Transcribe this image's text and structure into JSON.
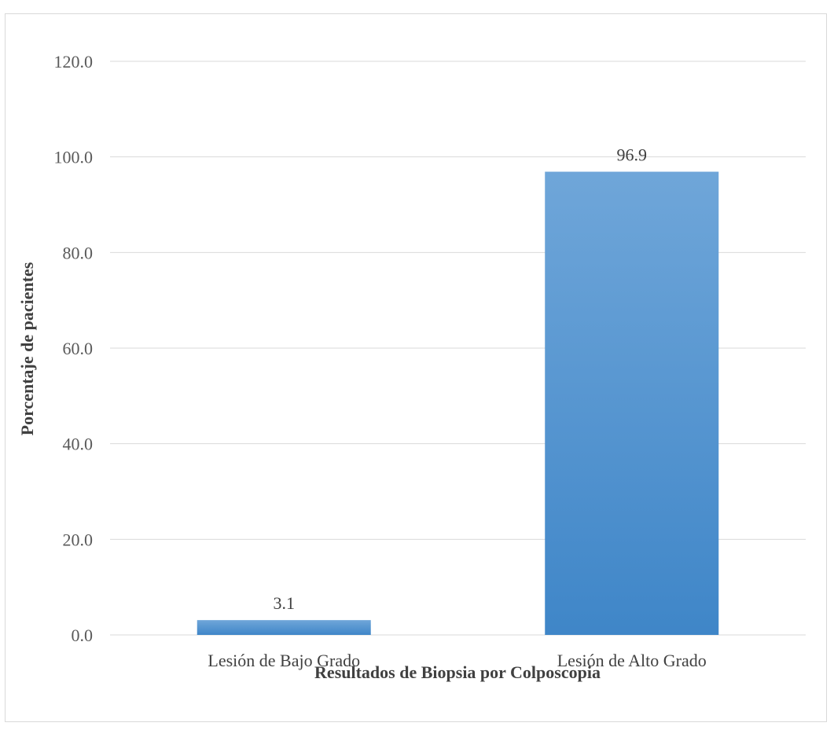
{
  "chart_data": {
    "type": "bar",
    "title": "",
    "xlabel": "Resultados de Biopsia por Colposcopia",
    "ylabel": "Porcentaje de pacientes",
    "categories": [
      "Lesión de Bajo Grado",
      "Lesión de Alto Grado"
    ],
    "values": [
      3.1,
      96.9
    ],
    "data_labels": [
      "3.1",
      "96.9"
    ],
    "ylim": [
      0,
      120
    ],
    "yticks": [
      "0.0",
      "20.0",
      "40.0",
      "60.0",
      "80.0",
      "100.0",
      "120.0"
    ],
    "grid": true,
    "legend": "none",
    "bar_color_top": "#6fa6d9",
    "bar_color_bottom": "#3f86c8",
    "gridline_color": "#d9d9d9"
  }
}
